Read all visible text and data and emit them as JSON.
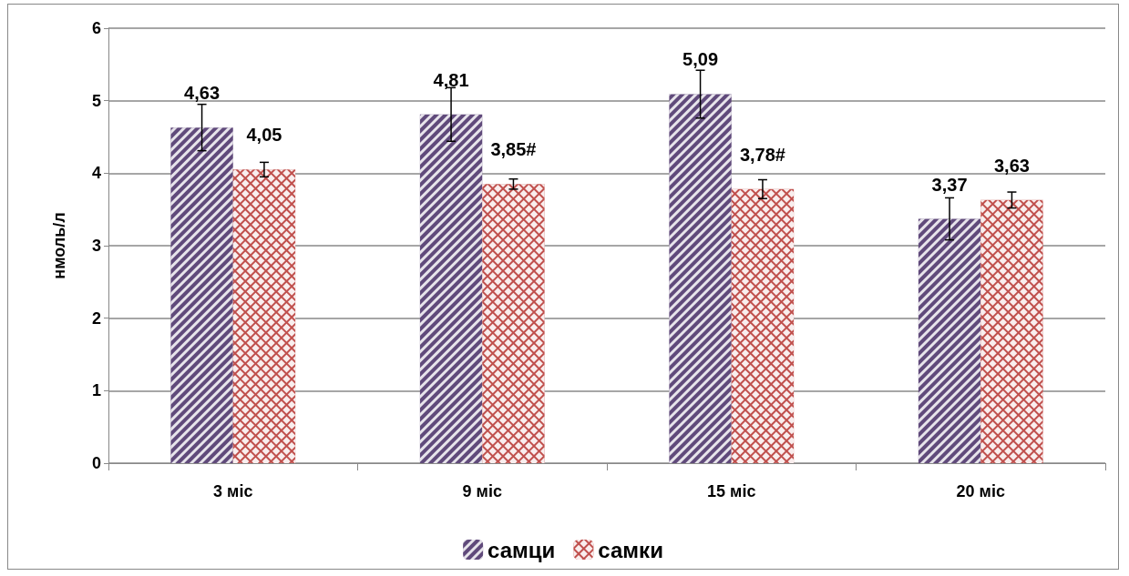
{
  "chart_data": {
    "type": "bar",
    "ylabel": "нмоль/л",
    "categories": [
      "3 міс",
      "9 міс",
      "15 міс",
      "20 міс"
    ],
    "series": [
      {
        "name": "самци",
        "color": "#604a7b",
        "values": [
          4.63,
          4.81,
          5.09,
          3.37
        ],
        "errors": [
          0.32,
          0.37,
          0.33,
          0.29
        ],
        "value_labels": [
          "4,63",
          "4,81",
          "5,09",
          "3,37"
        ]
      },
      {
        "name": "самки",
        "color": "#c0504d",
        "values": [
          4.05,
          3.85,
          3.78,
          3.63
        ],
        "errors": [
          0.1,
          0.07,
          0.13,
          0.11
        ],
        "value_labels": [
          "4,05",
          "3,85#",
          "3,78#",
          "3,63"
        ]
      }
    ],
    "ylim": [
      0,
      6
    ],
    "yticks": [
      0,
      1,
      2,
      3,
      4,
      5,
      6
    ],
    "grid": "y",
    "legend": "bottom"
  }
}
